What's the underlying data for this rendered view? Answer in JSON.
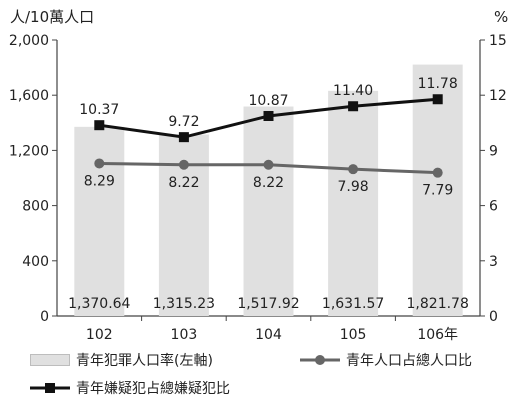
{
  "chart_data": {
    "type": "bar+line",
    "left_axis": {
      "unit_label": "人/10萬人口",
      "ylim": [
        0,
        2000
      ],
      "ticks": [
        "0",
        "400",
        "800",
        "1,200",
        "1,600",
        "2,000"
      ]
    },
    "right_axis": {
      "unit_label": "%",
      "ylim": [
        0,
        15
      ],
      "ticks": [
        "0",
        "3",
        "6",
        "9",
        "12",
        "15"
      ]
    },
    "categories": [
      "102",
      "103",
      "104",
      "105",
      "106年"
    ],
    "series": [
      {
        "name": "青年犯罪人口率(左軸)",
        "kind": "bar",
        "axis": "left",
        "values": [
          1370.64,
          1315.23,
          1517.92,
          1631.57,
          1821.78
        ],
        "labels": [
          "1,370.64",
          "1,315.23",
          "1,517.92",
          "1,631.57",
          "1,821.78"
        ],
        "color": "#e0e0e0"
      },
      {
        "name": "青年嫌疑犯占總嫌疑犯比",
        "kind": "line",
        "axis": "right",
        "marker": "square",
        "values": [
          10.37,
          9.72,
          10.87,
          11.4,
          11.78
        ],
        "labels": [
          "10.37",
          "9.72",
          "10.87",
          "11.40",
          "11.78"
        ],
        "color": "#111111"
      },
      {
        "name": "青年人口占總人口比",
        "kind": "line",
        "axis": "right",
        "marker": "circle",
        "values": [
          8.29,
          8.22,
          8.22,
          7.98,
          7.79
        ],
        "labels": [
          "8.29",
          "8.22",
          "8.22",
          "7.98",
          "7.79"
        ],
        "color": "#666666"
      }
    ],
    "grid": false
  }
}
